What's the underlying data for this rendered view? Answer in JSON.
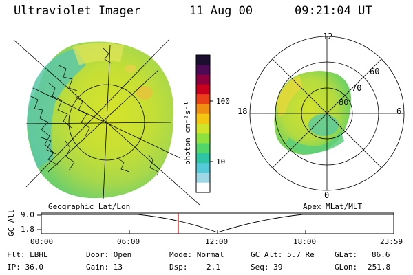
{
  "header": {
    "instrument": "Ultraviolet Imager",
    "date": "11 Aug 00",
    "time": "09:21:04 UT"
  },
  "colorbar": {
    "unit_label": "photon cm⁻²s⁻¹",
    "ticks": [
      "100",
      "10"
    ],
    "colors": [
      "#1a0f2e",
      "#4b0a53",
      "#8d0040",
      "#c8001e",
      "#e9401a",
      "#f08e12",
      "#f3c614",
      "#cfe42a",
      "#8ee13f",
      "#52d66a",
      "#2ec4a6",
      "#54c9d7",
      "#9ed7e6",
      "#ffffff"
    ]
  },
  "geo_panel": {
    "caption": "Geographic Lat/Lon"
  },
  "polar_panel": {
    "caption": "Apex MLat/MLT",
    "mlt_labels": [
      "12",
      "18",
      "6",
      "0"
    ],
    "lat_labels": [
      "60",
      "70",
      "80"
    ]
  },
  "timeline": {
    "ylabel": "GC Alt",
    "y_ticks": [
      "9.0",
      "1.8"
    ],
    "x_ticks": [
      "00:00",
      "06:00",
      "12:00",
      "18:00",
      "23:59"
    ],
    "marker_time": "09:21"
  },
  "footer": {
    "filter": "Flt: LBHL",
    "ip": "IP: 36.0",
    "door": "Door: Open",
    "gain": "Gain: 13",
    "mode": "Mode: Normal",
    "dsp_label": "Dsp:",
    "dsp_value": "2.1",
    "gc_alt": "GC Alt: 5.7 Re",
    "seq": "Seq: 39",
    "glat": "GLat:",
    "glat_value": "86.6",
    "glon": "GLon:",
    "glon_value": "251.8"
  }
}
